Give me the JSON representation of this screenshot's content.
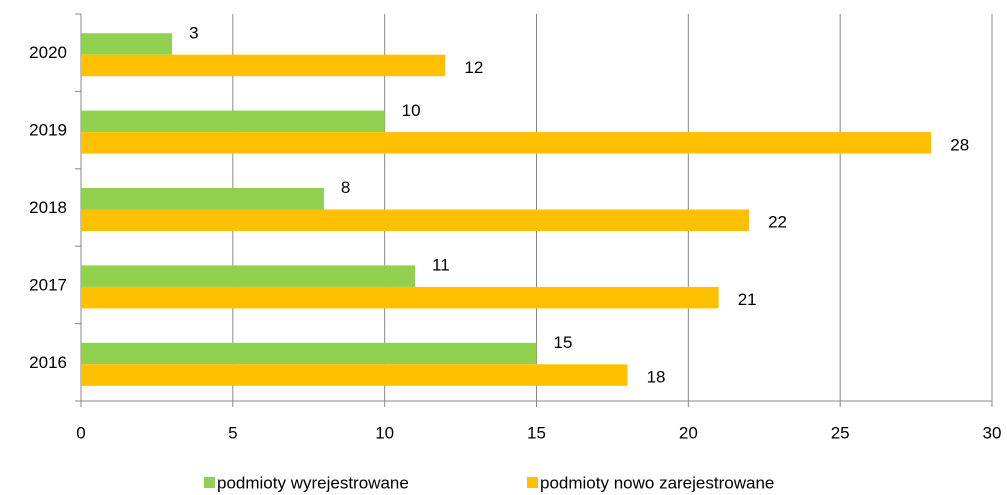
{
  "chart_data": {
    "type": "hbar",
    "categories": [
      "2016",
      "2017",
      "2018",
      "2019",
      "2020"
    ],
    "series": [
      {
        "name": "podmioty wyrejestrowane",
        "color": "#92d050",
        "values": [
          15,
          11,
          8,
          10,
          3
        ]
      },
      {
        "name": "podmioty nowo zarejestrowane",
        "color": "#ffc000",
        "values": [
          18,
          21,
          22,
          28,
          12
        ]
      }
    ],
    "xlim": [
      0,
      30
    ],
    "xticks": [
      0,
      5,
      10,
      15,
      20,
      25,
      30
    ],
    "grid": true,
    "legend": "bottom"
  }
}
